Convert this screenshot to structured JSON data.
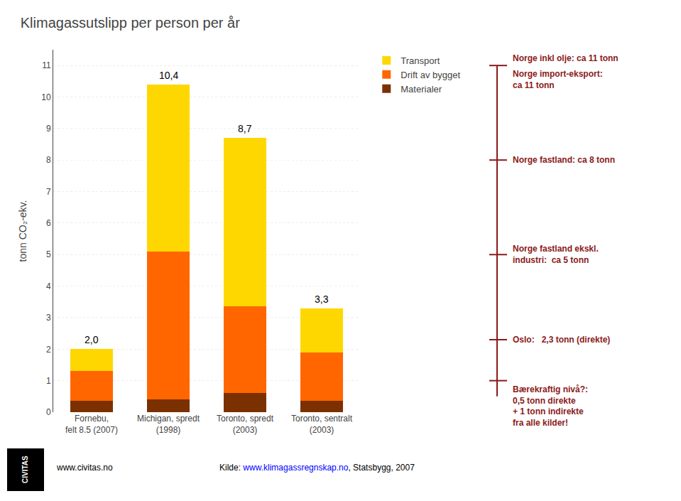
{
  "chart_data": {
    "type": "bar",
    "title": "Klimagassutslipp per person per år",
    "categories": [
      "Fornebu,\nfelt 8.5 (2007)",
      "Michigan, spredt\n(1998)",
      "Toronto, spredt\n(2003)",
      "Toronto, sentralt\n(2003)"
    ],
    "series": [
      {
        "name": "Materialer",
        "color": "#7B3000",
        "values": [
          0.35,
          0.4,
          0.6,
          0.35
        ]
      },
      {
        "name": "Drift av bygget",
        "color": "#FF6600",
        "values": [
          0.95,
          4.7,
          2.75,
          1.55
        ]
      },
      {
        "name": "Transport",
        "color": "#FFD700",
        "values": [
          0.7,
          5.3,
          5.35,
          1.4
        ]
      }
    ],
    "stacked": true,
    "totals": {
      "values": [
        2.0,
        10.4,
        8.7,
        3.3
      ],
      "value_labels": [
        "2,0",
        "10,4",
        "8,7",
        "3,3"
      ]
    },
    "ylabel": "tonn CO₂-ekv.",
    "ylim": [
      0,
      11.5
    ],
    "yticks": [
      0,
      1,
      2,
      3,
      4,
      5,
      6,
      7,
      8,
      9,
      10,
      11
    ],
    "grid": true,
    "legend": "right",
    "reference_line": {
      "from": 0.5,
      "to": 11.0,
      "color": "#8B1A1A"
    },
    "annotations": [
      {
        "y": 11.0,
        "text": "Norge inkl olje: ca 11 tonn",
        "color": "#8B1A1A"
      },
      {
        "y": 11.0,
        "text": "Norge import-eksport:\nca 11 tonn",
        "color": "#8B1A1A"
      },
      {
        "y": 8.0,
        "text": "Norge fastland: ca 8 tonn",
        "color": "#8B1A1A"
      },
      {
        "y": 5.0,
        "text": "Norge fastland ekskl.\nindustri:  ca 5 tonn",
        "color": "#8B1A1A"
      },
      {
        "y": 2.3,
        "text": "Oslo:   2,3 tonn (direkte)",
        "color": "#8B1A1A"
      },
      {
        "y": 1.0,
        "text": "Bærekraftig nivå?:\n0,5 tonn direkte\n+ 1 tonn indirekte\nfra alle kilder!",
        "color": "#8B1A1A"
      }
    ],
    "footer": {
      "logo": "CIVITAS",
      "texts": [
        {
          "text": "www.civitas.no"
        },
        {
          "text": "Kilde: "
        },
        {
          "text": "www.klimagassregnskap.no",
          "color": "blue"
        },
        {
          "text": ", Statsbygg, 2007"
        }
      ]
    }
  }
}
